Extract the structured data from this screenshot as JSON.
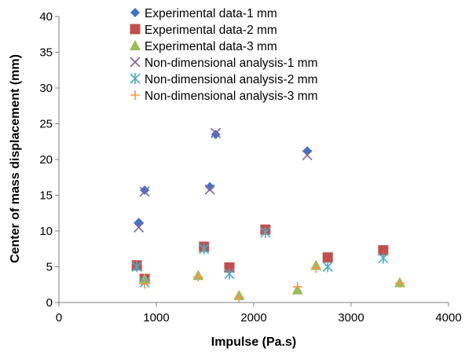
{
  "chart_data": {
    "type": "scatter",
    "xlabel": "Impulse (Pa.s)",
    "ylabel": "Center of mass displacement (mm)",
    "xlim": [
      0,
      4000
    ],
    "ylim": [
      0,
      40
    ],
    "x_ticks": [
      "0",
      "1000",
      "2000",
      "3000",
      "4000"
    ],
    "y_ticks": [
      "0",
      "5",
      "10",
      "15",
      "20",
      "25",
      "30",
      "35",
      "40"
    ],
    "grid": false,
    "legend_position": "top-center",
    "series": [
      {
        "name": "Experimental data-1 mm",
        "marker": "diamond",
        "color": "#4472C4",
        "points": [
          [
            820,
            11.2
          ],
          [
            880,
            15.7
          ],
          [
            1550,
            16.2
          ],
          [
            1610,
            23.5
          ],
          [
            2550,
            21.2
          ]
        ]
      },
      {
        "name": "Experimental data-2 mm",
        "marker": "square",
        "color": "#C0504D",
        "points": [
          [
            800,
            5.2
          ],
          [
            880,
            3.3
          ],
          [
            1490,
            7.8
          ],
          [
            1750,
            4.9
          ],
          [
            2120,
            10.2
          ],
          [
            2760,
            6.3
          ],
          [
            3330,
            7.3
          ]
        ]
      },
      {
        "name": "Experimental data-3 mm",
        "marker": "triangle",
        "color": "#9BBB59",
        "points": [
          [
            880,
            3.3
          ],
          [
            1430,
            3.8
          ],
          [
            1850,
            1.0
          ],
          [
            2450,
            1.8
          ],
          [
            2640,
            5.2
          ],
          [
            3500,
            2.8
          ]
        ]
      },
      {
        "name": "Non-dimensional analysis-1 mm",
        "marker": "x",
        "color": "#8064A2",
        "points": [
          [
            820,
            10.5
          ],
          [
            880,
            15.5
          ],
          [
            1550,
            15.8
          ],
          [
            1610,
            23.7
          ],
          [
            2550,
            20.6
          ]
        ]
      },
      {
        "name": "Non-dimensional analysis-2 mm",
        "marker": "asterisk",
        "color": "#4BACC6",
        "points": [
          [
            800,
            5.0
          ],
          [
            880,
            2.8
          ],
          [
            1490,
            7.5
          ],
          [
            1750,
            4.0
          ],
          [
            2120,
            9.8
          ],
          [
            2760,
            5.0
          ],
          [
            3330,
            6.2
          ]
        ]
      },
      {
        "name": "Non-dimensional analysis-3 mm",
        "marker": "plus",
        "color": "#F79646",
        "points": [
          [
            880,
            2.6
          ],
          [
            1430,
            3.6
          ],
          [
            1850,
            0.7
          ],
          [
            2450,
            2.2
          ],
          [
            2640,
            4.8
          ],
          [
            3500,
            2.7
          ]
        ]
      }
    ]
  }
}
